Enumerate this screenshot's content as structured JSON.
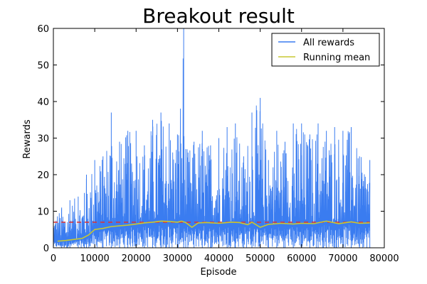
{
  "chart_data": {
    "type": "line",
    "title": "Breakout result",
    "xlabel": "Episode",
    "ylabel": "Rewards",
    "xlim": [
      0,
      80000
    ],
    "ylim": [
      0,
      60
    ],
    "x_ticks": [
      0,
      10000,
      20000,
      30000,
      40000,
      50000,
      60000,
      70000,
      80000
    ],
    "y_ticks": [
      0,
      10,
      20,
      30,
      40,
      50,
      60
    ],
    "x_tick_labels": [
      "0",
      "10000",
      "20000",
      "30000",
      "40000",
      "50000",
      "60000",
      "70000",
      "80000"
    ],
    "y_tick_labels": [
      "0",
      "10",
      "20",
      "30",
      "40",
      "50",
      "60"
    ],
    "grid": false,
    "legend_position": "top-right",
    "series": [
      {
        "name": "All rewards",
        "color": "#3a7cf0",
        "style": "solid",
        "episodes": 76500,
        "envelope": {
          "x": [
            0,
            2000,
            4000,
            6000,
            7500,
            8000,
            10000,
            12000,
            14000,
            16000,
            18000,
            20000,
            22000,
            24000,
            26000,
            28000,
            30000,
            31500,
            32000,
            34000,
            36000,
            38000,
            40000,
            42000,
            44000,
            46000,
            48000,
            50000,
            52000,
            54000,
            56000,
            58000,
            60000,
            62000,
            64000,
            66000,
            68000,
            70000,
            72000,
            74000,
            76500
          ],
          "upper": [
            10,
            11,
            13,
            14,
            15,
            20,
            24,
            25,
            37,
            29,
            32,
            32,
            28,
            35,
            37,
            34,
            31,
            60,
            27,
            29,
            32,
            28,
            30,
            33,
            34,
            25,
            37,
            41,
            24,
            32,
            29,
            34,
            34,
            31,
            34,
            32,
            33,
            32,
            33,
            25,
            24
          ],
          "lower": [
            0,
            0,
            0,
            0,
            0,
            0,
            0,
            0,
            0,
            0,
            0,
            0,
            0,
            0,
            0,
            0,
            0,
            0,
            0,
            0,
            0,
            0,
            0,
            0,
            0,
            0,
            0,
            0,
            0,
            0,
            0,
            0,
            0,
            0,
            0,
            0,
            0,
            0,
            0,
            0,
            0
          ]
        }
      },
      {
        "name": "Running mean",
        "color": "#c8c832",
        "style": "solid",
        "x": [
          1000,
          3000,
          5000,
          7000,
          8500,
          10000,
          12000,
          14000,
          16000,
          18000,
          20000,
          22000,
          24000,
          26000,
          28000,
          30000,
          31000,
          32000,
          33500,
          35000,
          37000,
          40000,
          43000,
          45000,
          47000,
          48000,
          50000,
          52000,
          55000,
          58000,
          60000,
          63000,
          66000,
          69000,
          72000,
          74000,
          76500
        ],
        "y": [
          1.8,
          2.0,
          2.3,
          2.6,
          3.5,
          5.0,
          5.3,
          5.8,
          6.0,
          6.2,
          6.5,
          6.8,
          7.0,
          7.3,
          7.2,
          7.0,
          7.3,
          6.9,
          5.6,
          6.8,
          6.9,
          6.7,
          7.0,
          6.9,
          6.3,
          7.0,
          5.6,
          6.4,
          6.7,
          6.5,
          6.7,
          6.6,
          7.3,
          6.6,
          7.1,
          6.7,
          6.8
        ]
      },
      {
        "name": "",
        "color": "#e03030",
        "style": "dashed",
        "x": [
          0,
          76500
        ],
        "y": [
          7,
          7
        ]
      }
    ]
  }
}
